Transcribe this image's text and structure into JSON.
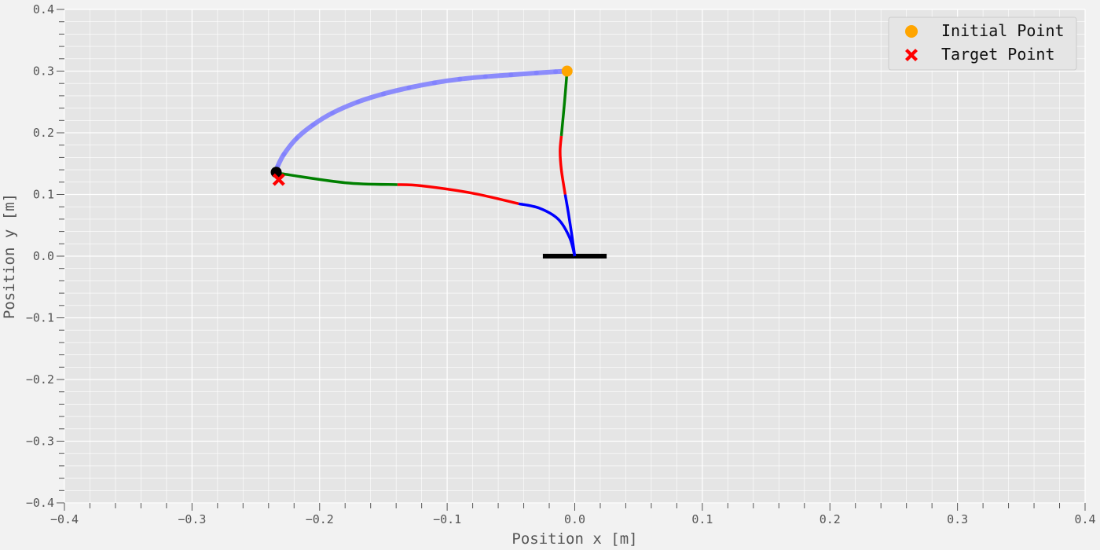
{
  "chart_data": {
    "type": "line",
    "xlabel": "Position x [m]",
    "ylabel": "Position y [m]",
    "xlim": [
      -0.4,
      0.4
    ],
    "ylim": [
      -0.4,
      0.4
    ],
    "xticks": [
      -0.4,
      -0.3,
      -0.2,
      -0.1,
      0.0,
      0.1,
      0.2,
      0.3,
      0.4
    ],
    "yticks": [
      -0.4,
      -0.3,
      -0.2,
      -0.1,
      0.0,
      0.1,
      0.2,
      0.3,
      0.4
    ],
    "xtick_labels": [
      "−0.4",
      "−0.3",
      "−0.2",
      "−0.1",
      "0.0",
      "0.1",
      "0.2",
      "0.3",
      "0.4"
    ],
    "ytick_labels": [
      "−0.4",
      "−0.3",
      "−0.2",
      "−0.1",
      "0.0",
      "0.1",
      "0.2",
      "0.3",
      "0.4"
    ],
    "minor_step": 0.02,
    "grid": true,
    "background": "#e5e5e5",
    "legend_position": "top-right",
    "legend": [
      {
        "label": "Initial Point",
        "marker": "circle",
        "color": "#ffa500"
      },
      {
        "label": "Target Point",
        "marker": "x",
        "color": "#ff0000"
      }
    ],
    "base": {
      "x": [
        -0.025,
        0.025
      ],
      "y": 0.0,
      "color": "#000000"
    },
    "trajectory": {
      "color": "#7b7bff",
      "points": [
        [
          -0.006,
          0.3
        ],
        [
          -0.015,
          0.299
        ],
        [
          -0.03,
          0.297
        ],
        [
          -0.05,
          0.294
        ],
        [
          -0.07,
          0.291
        ],
        [
          -0.09,
          0.287
        ],
        [
          -0.11,
          0.281
        ],
        [
          -0.13,
          0.273
        ],
        [
          -0.15,
          0.263
        ],
        [
          -0.17,
          0.25
        ],
        [
          -0.19,
          0.232
        ],
        [
          -0.205,
          0.213
        ],
        [
          -0.218,
          0.191
        ],
        [
          -0.228,
          0.165
        ],
        [
          -0.233,
          0.145
        ],
        [
          -0.234,
          0.137
        ]
      ]
    },
    "arm_initial": {
      "segments": [
        {
          "color": "#0000ff",
          "points": [
            [
              0.0,
              0.0
            ],
            [
              -0.002,
              0.03
            ],
            [
              -0.005,
              0.07
            ],
            [
              -0.0075,
              0.1
            ]
          ]
        },
        {
          "color": "#ff0000",
          "points": [
            [
              -0.0075,
              0.1
            ],
            [
              -0.0105,
              0.14
            ],
            [
              -0.0115,
              0.17
            ],
            [
              -0.0105,
              0.195
            ]
          ]
        },
        {
          "color": "#008000",
          "points": [
            [
              -0.0105,
              0.195
            ],
            [
              -0.008,
              0.25
            ],
            [
              -0.006,
              0.3
            ]
          ]
        }
      ]
    },
    "arm_final": {
      "segments": [
        {
          "color": "#0000ff",
          "points": [
            [
              0.0,
              0.0
            ],
            [
              -0.004,
              0.03
            ],
            [
              -0.013,
              0.06
            ],
            [
              -0.028,
              0.078
            ],
            [
              -0.044,
              0.085
            ]
          ]
        },
        {
          "color": "#ff0000",
          "points": [
            [
              -0.044,
              0.085
            ],
            [
              -0.08,
              0.102
            ],
            [
              -0.12,
              0.114
            ],
            [
              -0.139,
              0.116
            ]
          ]
        },
        {
          "color": "#008000",
          "points": [
            [
              -0.139,
              0.116
            ],
            [
              -0.18,
              0.119
            ],
            [
              -0.234,
              0.135
            ]
          ]
        }
      ]
    },
    "initial_point": {
      "x": -0.006,
      "y": 0.3,
      "color": "#ffa500"
    },
    "end_effector": {
      "x": -0.234,
      "y": 0.136,
      "color": "#000000"
    },
    "target_point": {
      "x": -0.232,
      "y": 0.124,
      "color": "#ff0000"
    }
  }
}
